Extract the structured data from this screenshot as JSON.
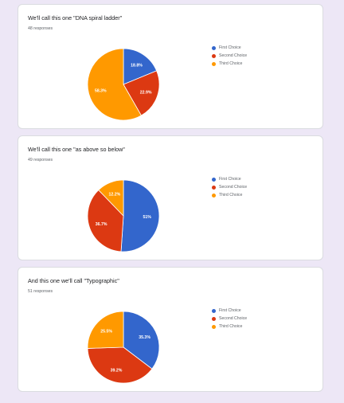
{
  "chart_data": [
    {
      "type": "pie",
      "title": "We'll call this one \"DNA spiral ladder\"",
      "subtitle": "48 responses",
      "categories": [
        "First Choice",
        "Second Choice",
        "Third Choice"
      ],
      "values": [
        18.8,
        22.9,
        58.3
      ],
      "labels": [
        "18.8%",
        "22.9%",
        "58.3%"
      ],
      "colors": [
        "#3366cc",
        "#dc3912",
        "#ff9900"
      ],
      "legend_position": "top-right"
    },
    {
      "type": "pie",
      "title": "We'll call this one \"as above so below\"",
      "subtitle": "49 responses",
      "categories": [
        "First Choice",
        "Second Choice",
        "Third Choice"
      ],
      "values": [
        51,
        36.7,
        12.2
      ],
      "labels": [
        "51%",
        "36.7%",
        "12.2%"
      ],
      "colors": [
        "#3366cc",
        "#dc3912",
        "#ff9900"
      ],
      "legend_position": "top-right"
    },
    {
      "type": "pie",
      "title": "And this one we'll call \"Typographic\"",
      "subtitle": "51 responses",
      "categories": [
        "First Choice",
        "Second Choice",
        "Third Choice"
      ],
      "values": [
        35.3,
        39.2,
        25.5
      ],
      "labels": [
        "35.3%",
        "39.2%",
        "25.5%"
      ],
      "colors": [
        "#3366cc",
        "#dc3912",
        "#ff9900"
      ],
      "legend_position": "top-right"
    }
  ]
}
